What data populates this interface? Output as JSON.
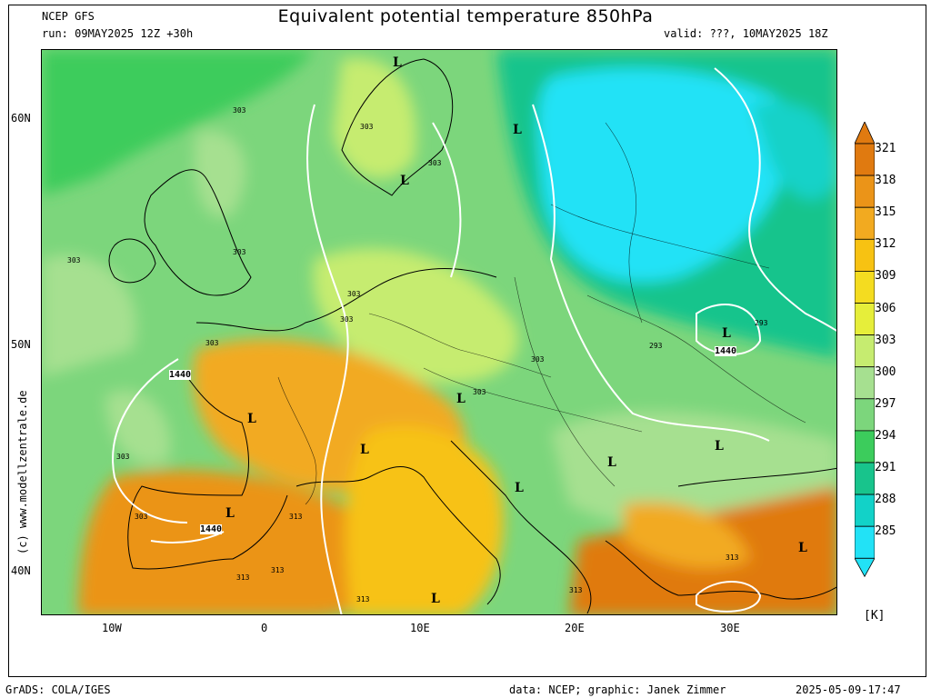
{
  "header": {
    "model": "NCEP GFS",
    "run": "run: 09MAY2025 12Z +30h",
    "title": "Equivalent potential temperature 850hPa",
    "valid": "valid: ???, 10MAY2025 18Z"
  },
  "axes": {
    "lat_labels": [
      "60N",
      "50N",
      "40N"
    ],
    "lon_labels": [
      "10W",
      "0",
      "10E",
      "20E",
      "30E"
    ]
  },
  "colorbar": {
    "values": [
      "321",
      "318",
      "315",
      "312",
      "309",
      "306",
      "303",
      "300",
      "297",
      "294",
      "291",
      "288",
      "285"
    ],
    "colors": [
      "#e07a10",
      "#eb9418",
      "#f2aa20",
      "#f7c212",
      "#f4dc20",
      "#e6ee3a",
      "#c6ec70",
      "#a6e090",
      "#7cd67c",
      "#3ccc5c",
      "#18c48c",
      "#12d2c8",
      "#22e2f6"
    ],
    "unit": "[K]"
  },
  "map_labels": {
    "contours": [
      "303",
      "303",
      "303",
      "303",
      "303",
      "303",
      "303",
      "303",
      "303",
      "303",
      "303",
      "303",
      "313",
      "313",
      "313",
      "313",
      "313",
      "313",
      "293",
      "293"
    ],
    "geopotential": [
      "1440",
      "1440",
      "1440"
    ],
    "lows": [
      "L",
      "L",
      "L",
      "L",
      "L",
      "L",
      "L",
      "L",
      "L",
      "L",
      "L",
      "L",
      "L"
    ]
  },
  "sidebar": {
    "credit": "(c) www.modellzentrale.de"
  },
  "footer": {
    "left": "GrADS: COLA/IGES",
    "center": "data: NCEP; graphic: Janek Zimmer",
    "right": "2025-05-09-17:47"
  }
}
